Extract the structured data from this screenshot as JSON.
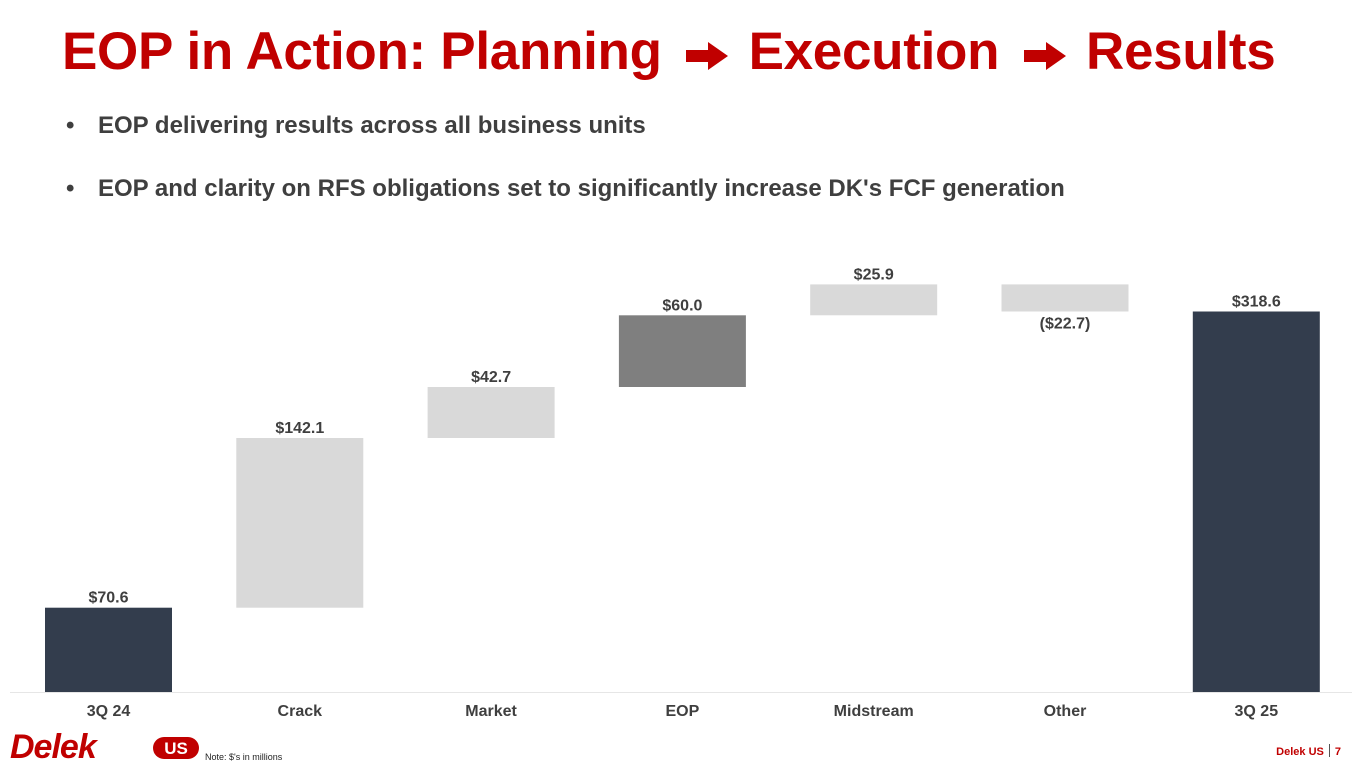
{
  "title": {
    "part1": "EOP in Action: Planning",
    "part2": "Execution",
    "part3": "Results",
    "arrow_icon": "right-arrow-icon"
  },
  "bullets": [
    "EOP delivering results across all business units",
    "EOP and clarity on RFS obligations set to significantly increase DK's FCF generation"
  ],
  "bullet_symbol": "•",
  "colors": {
    "brand_red": "#c00000",
    "total_bar": "#333d4d",
    "increment_bar": "#d9d9d9",
    "highlight_bar": "#7f7f7f"
  },
  "chart_data": {
    "type": "bar",
    "subtype": "waterfall",
    "title": "",
    "xlabel": "",
    "ylabel": "",
    "categories": [
      "3Q 24",
      "Crack",
      "Market",
      "EOP",
      "Midstream",
      "Other",
      "3Q 25"
    ],
    "values": [
      70.6,
      142.1,
      42.7,
      60.0,
      25.9,
      -22.7,
      318.6
    ],
    "kinds": [
      "total",
      "delta",
      "delta",
      "highlight",
      "delta",
      "delta",
      "total"
    ],
    "value_labels": [
      "$70.6",
      "$142.1",
      "$42.7",
      "$60.0",
      "$25.9",
      "($22.7)",
      "$318.6"
    ],
    "ylim": [
      0,
      345
    ]
  },
  "footer": {
    "logo_main": "Delek",
    "logo_badge": "US",
    "note": "Note: $'s in millions",
    "company": "Delek US",
    "page_number": "7"
  }
}
